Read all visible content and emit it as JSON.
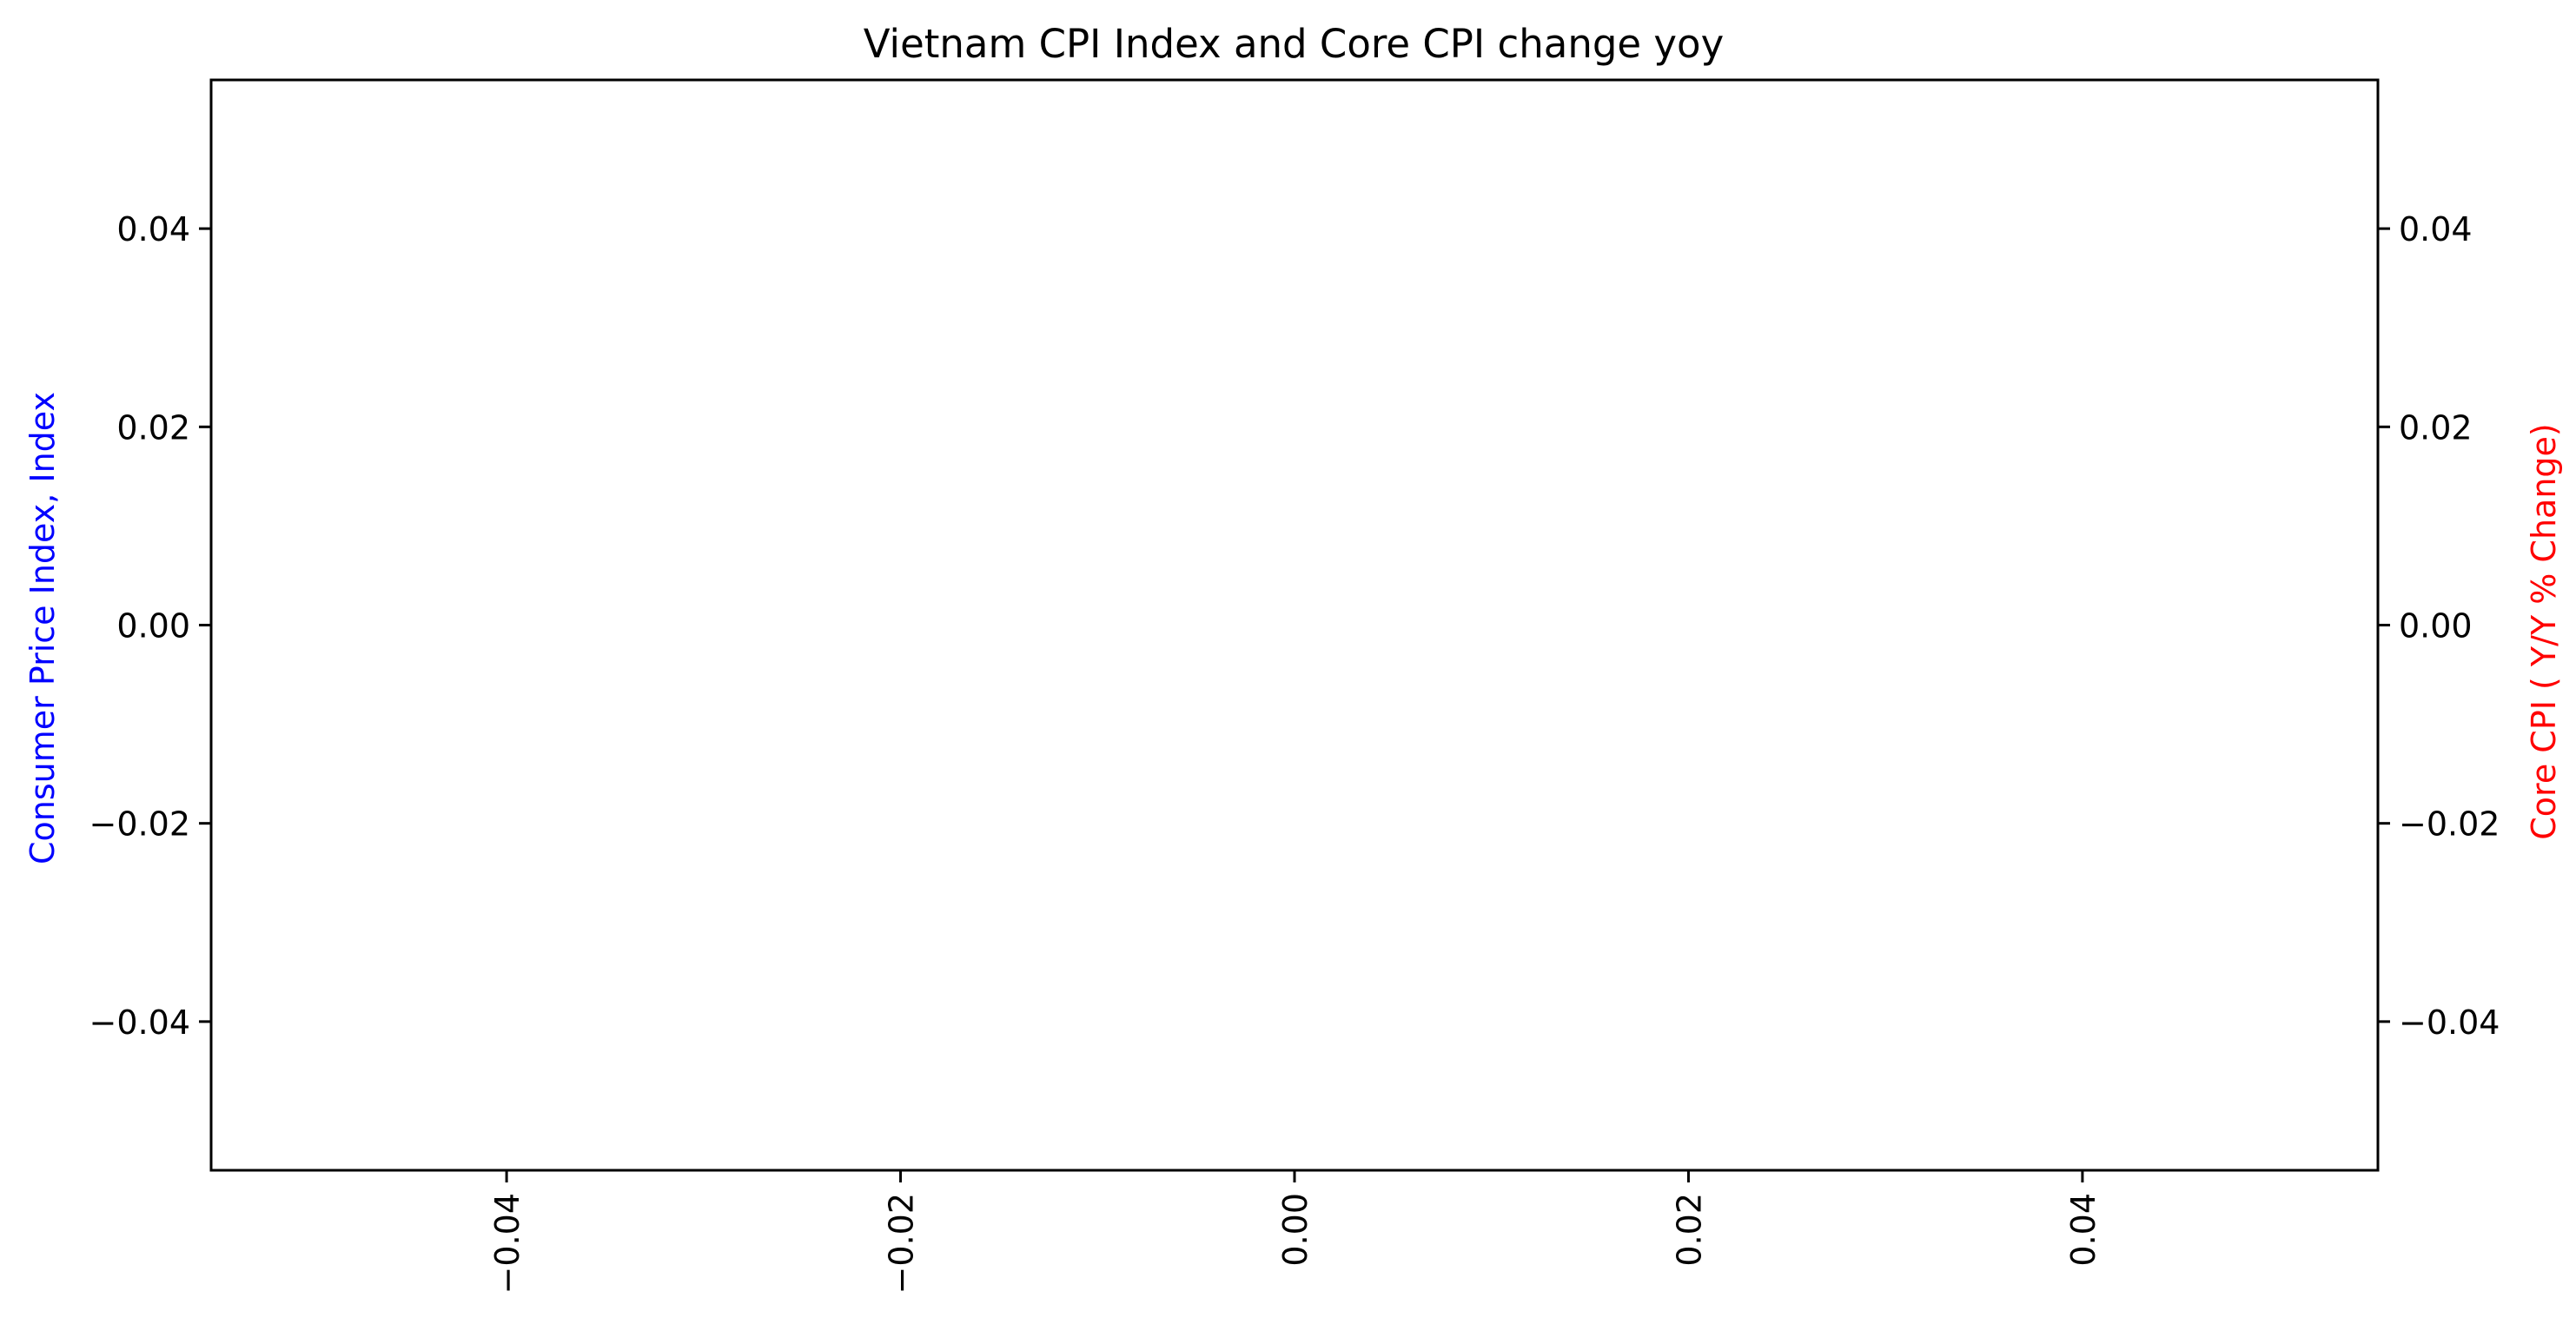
{
  "chart_data": {
    "type": "line",
    "title": "Vietnam CPI Index and Core CPI change yoy",
    "ylabel_left": "Consumer Price Index, Index",
    "ylabel_right": "Core CPI ( Y/Y % Change)",
    "xlabel": "",
    "xlim": [
      -0.055,
      0.055
    ],
    "ylim": [
      -0.055,
      0.055
    ],
    "x_ticks": [
      "−0.04",
      "−0.02",
      "0.00",
      "0.02",
      "0.04"
    ],
    "x_tick_values": [
      -0.04,
      -0.02,
      0.0,
      0.02,
      0.04
    ],
    "y_left_ticks": [
      "−0.04",
      "−0.02",
      "0.00",
      "0.02",
      "0.04"
    ],
    "y_left_tick_values": [
      -0.04,
      -0.02,
      0.0,
      0.02,
      0.04
    ],
    "y_right_ticks": [
      "−0.04",
      "−0.02",
      "0.00",
      "0.02",
      "0.04"
    ],
    "y_right_tick_values": [
      -0.04,
      -0.02,
      0.0,
      0.02,
      0.04
    ],
    "series": [],
    "grid": false,
    "colors": {
      "ylabel_left": "#0000ff",
      "ylabel_right": "#ff0000",
      "axes": "#000000"
    }
  }
}
